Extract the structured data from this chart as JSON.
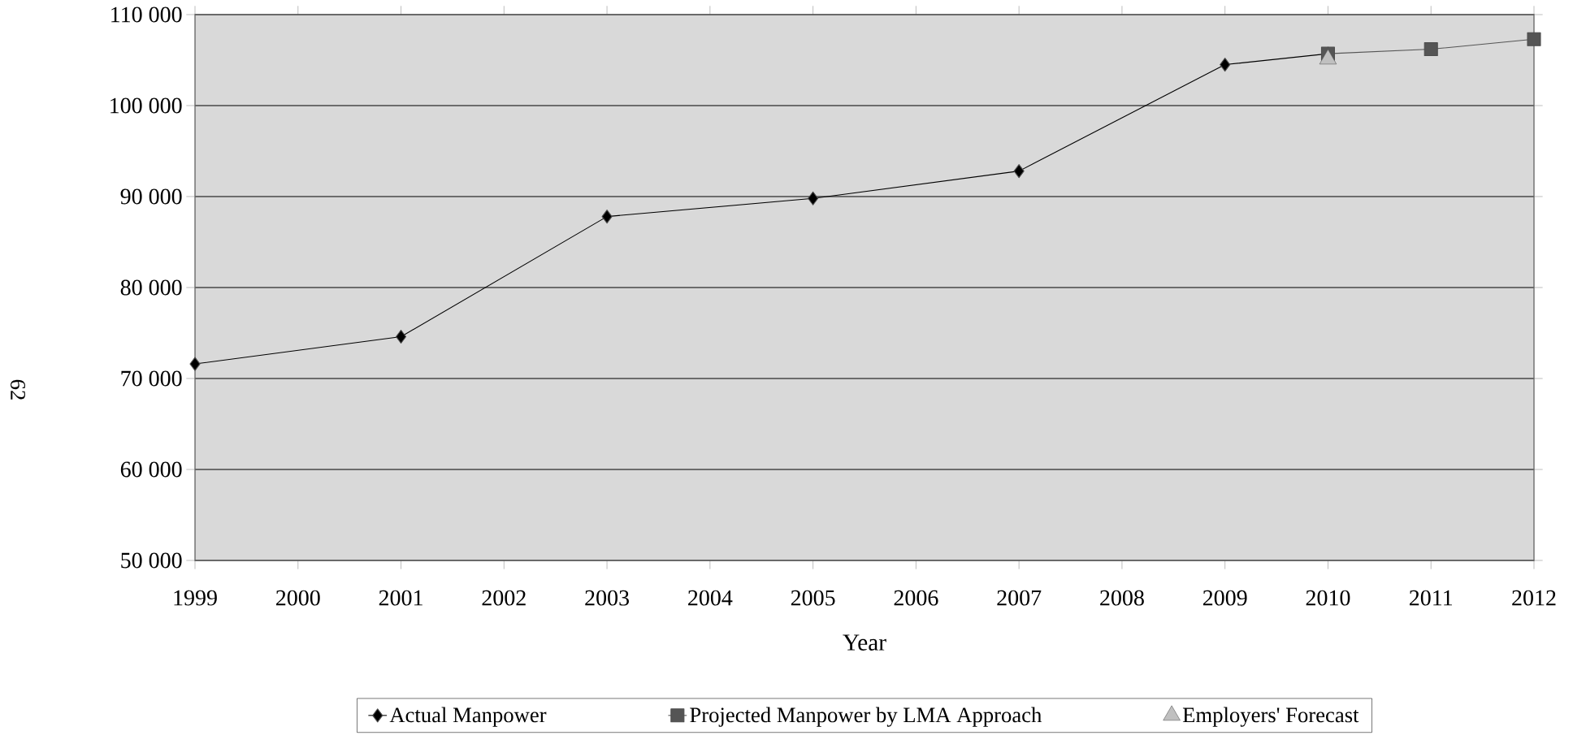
{
  "chart_data": {
    "type": "line",
    "xlabel": "Year",
    "annotations": [
      "62"
    ],
    "xlim": [
      1999,
      2012
    ],
    "xticks": [
      1999,
      2000,
      2001,
      2002,
      2003,
      2004,
      2005,
      2006,
      2007,
      2008,
      2009,
      2010,
      2011,
      2012
    ],
    "ylim": [
      50000,
      110000
    ],
    "yticks": [
      {
        "value": 50000,
        "label": "50 000"
      },
      {
        "value": 60000,
        "label": "60 000"
      },
      {
        "value": 70000,
        "label": "70 000"
      },
      {
        "value": 80000,
        "label": "80 000"
      },
      {
        "value": 90000,
        "label": "90 000"
      },
      {
        "value": 100000,
        "label": "100 000"
      },
      {
        "value": 110000,
        "label": "110 000"
      }
    ],
    "grid": "y",
    "legend": "bottom",
    "line_style": "solid",
    "series": [
      {
        "name": "Actual Manpower",
        "marker": "diamond",
        "color": "#000000",
        "x": [
          1999,
          2001,
          2003,
          2005,
          2007,
          2009,
          2010
        ],
        "values": [
          71600,
          74600,
          87800,
          89800,
          92800,
          104500,
          105700
        ]
      },
      {
        "name": "Projected Manpower by LMA Approach",
        "marker": "square",
        "color": "#555555",
        "x": [
          2010,
          2011,
          2012
        ],
        "values": [
          105700,
          106200,
          107300
        ]
      },
      {
        "name": "Employers' Forecast",
        "type": "scatter",
        "marker": "triangle",
        "color": "#c0c0c0",
        "x": [
          2010
        ],
        "values": [
          105100
        ]
      }
    ]
  }
}
